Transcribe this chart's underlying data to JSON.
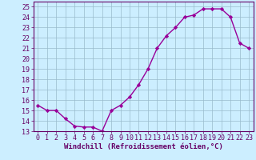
{
  "x": [
    0,
    1,
    2,
    3,
    4,
    5,
    6,
    7,
    8,
    9,
    10,
    11,
    12,
    13,
    14,
    15,
    16,
    17,
    18,
    19,
    20,
    21,
    22,
    23
  ],
  "y": [
    15.5,
    15.0,
    15.0,
    14.2,
    13.5,
    13.4,
    13.4,
    13.0,
    15.0,
    15.5,
    16.3,
    17.5,
    19.0,
    21.0,
    22.2,
    23.0,
    24.0,
    24.2,
    24.8,
    24.8,
    24.8,
    24.0,
    21.5,
    21.0
  ],
  "line_color": "#990099",
  "marker": "D",
  "marker_size": 2.2,
  "bg_color": "#cceeff",
  "grid_color": "#99bbcc",
  "xlabel": "Windchill (Refroidissement éolien,°C)",
  "xlim": [
    -0.5,
    23.5
  ],
  "ylim": [
    13,
    25.5
  ],
  "yticks": [
    13,
    14,
    15,
    16,
    17,
    18,
    19,
    20,
    21,
    22,
    23,
    24,
    25
  ],
  "xticks": [
    0,
    1,
    2,
    3,
    4,
    5,
    6,
    7,
    8,
    9,
    10,
    11,
    12,
    13,
    14,
    15,
    16,
    17,
    18,
    19,
    20,
    21,
    22,
    23
  ],
  "tick_color": "#660066",
  "axis_color": "#660066",
  "label_fontsize": 6.5,
  "tick_fontsize": 6.0,
  "linewidth": 1.0
}
